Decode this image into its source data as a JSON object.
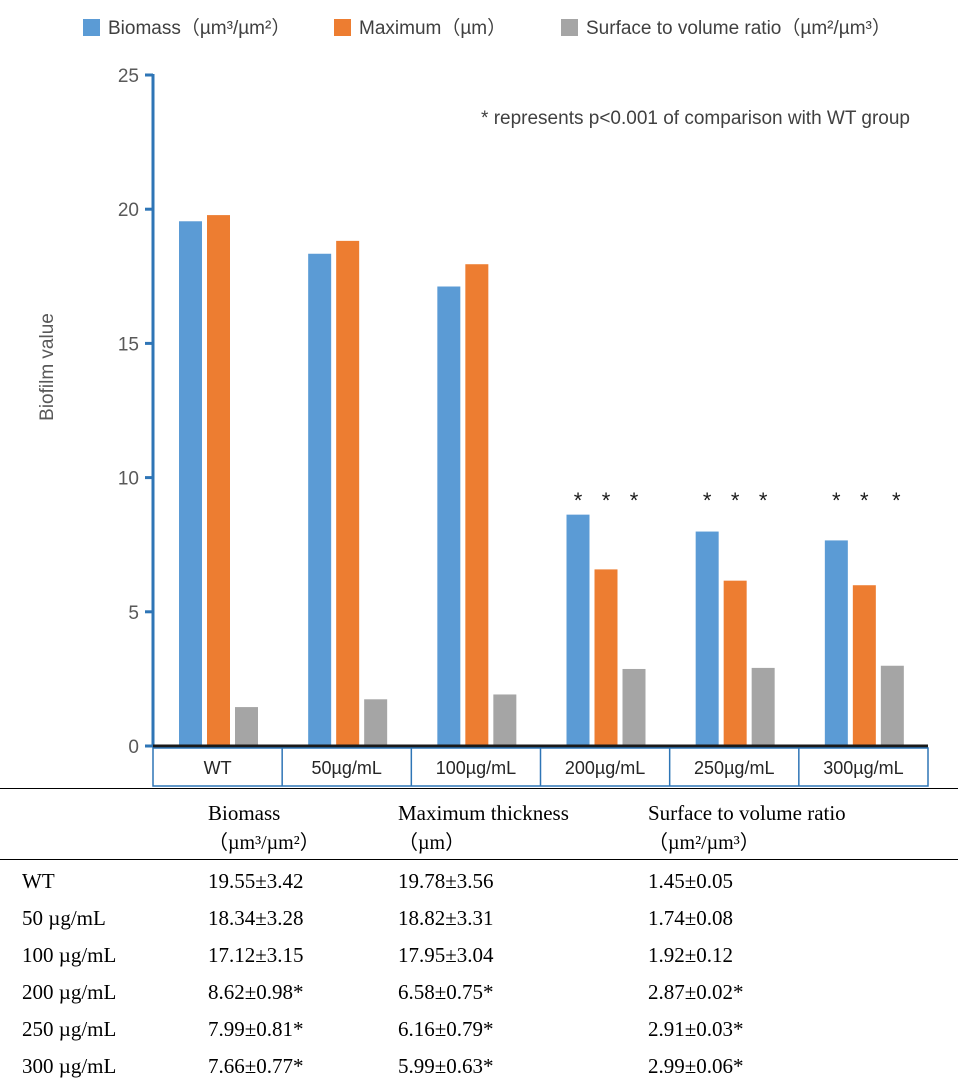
{
  "chart_data": {
    "type": "bar",
    "categories": [
      "WT",
      "50µg/mL",
      "100µg/mL",
      "200µg/mL",
      "250µg/mL",
      "300µg/mL"
    ],
    "series": [
      {
        "name": "Biomass（µm³/µm²）",
        "color": "#5B9BD5",
        "values": [
          19.55,
          18.34,
          17.12,
          8.62,
          7.99,
          7.66
        ]
      },
      {
        "name": "Maximum（µm）",
        "color": "#ED7D31",
        "values": [
          19.78,
          18.82,
          17.95,
          6.58,
          6.16,
          5.99
        ]
      },
      {
        "name": "Surface to volume ratio（µm²/µm³）",
        "color": "#A5A5A5",
        "values": [
          1.45,
          1.74,
          1.92,
          2.87,
          2.91,
          2.99
        ]
      }
    ],
    "ylabel": "Biofilm value",
    "xlabel": "",
    "ylim": [
      0,
      25
    ],
    "yticks": [
      0,
      5,
      10,
      15,
      20,
      25
    ],
    "grid": false,
    "legend_position": "top",
    "annotation": "* represents p<0.001 of comparison with WT  group",
    "significance_marker": "*",
    "significant_categories": [
      "200µg/mL",
      "250µg/mL",
      "300µg/mL"
    ]
  },
  "table": {
    "headers": [
      {
        "label": "",
        "unit": ""
      },
      {
        "label": "Biomass",
        "unit": "（µm³/µm²）"
      },
      {
        "label": "Maximum thickness",
        "unit": "（µm）"
      },
      {
        "label": "Surface to volume ratio",
        "unit": "（µm²/µm³）"
      }
    ],
    "rows": [
      [
        "WT",
        "19.55±3.42",
        "19.78±3.56",
        "1.45±0.05"
      ],
      [
        "50 µg/mL",
        "18.34±3.28",
        "18.82±3.31",
        "1.74±0.08"
      ],
      [
        "100 µg/mL",
        "17.12±3.15",
        "17.95±3.04",
        "1.92±0.12"
      ],
      [
        "200 µg/mL",
        "8.62±0.98*",
        "6.58±0.75*",
        "2.87±0.02*"
      ],
      [
        "250 µg/mL",
        "7.99±0.81*",
        "6.16±0.79*",
        "2.91±0.03*"
      ],
      [
        "300 µg/mL",
        "7.66±0.77*",
        "5.99±0.63*",
        "2.99±0.06*"
      ]
    ]
  }
}
